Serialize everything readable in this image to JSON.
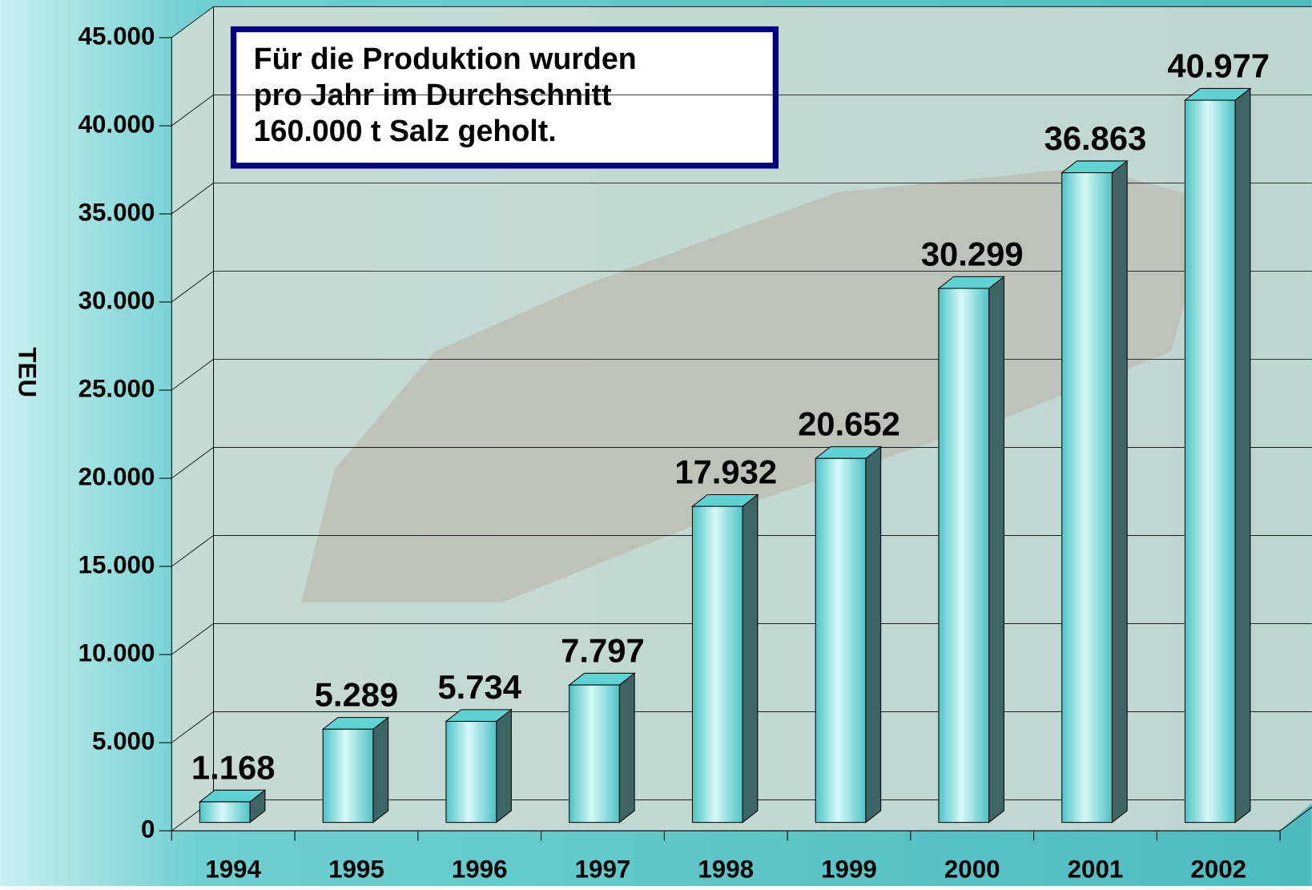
{
  "chart_data": {
    "type": "bar3d",
    "y_label": "TEU",
    "annotation": [
      "Für die Produktion wurden",
      "pro Jahr im Durchschnitt",
      "160.000 t Salz geholt."
    ],
    "categories": [
      "1994",
      "1995",
      "1996",
      "1997",
      "1998",
      "1999",
      "2000",
      "2001",
      "2002"
    ],
    "values": [
      1168,
      5289,
      5734,
      7797,
      17932,
      20652,
      30299,
      36863,
      40977
    ],
    "value_labels": [
      "1.168",
      "5.289",
      "5.734",
      "7.797",
      "17.932",
      "20.652",
      "30.299",
      "36.863",
      "40.977"
    ],
    "color": "#5fd3d3",
    "ylim": [
      0,
      45000
    ],
    "yticks": [
      {
        "value": 0,
        "label": "0"
      },
      {
        "value": 5000,
        "label": "5.000"
      },
      {
        "value": 10000,
        "label": "10.000"
      },
      {
        "value": 15000,
        "label": "15.000"
      },
      {
        "value": 20000,
        "label": "20.000"
      },
      {
        "value": 25000,
        "label": "25.000"
      },
      {
        "value": 30000,
        "label": "30.000"
      },
      {
        "value": 35000,
        "label": "35.000"
      },
      {
        "value": 40000,
        "label": "40.000"
      },
      {
        "value": 45000,
        "label": "45.000"
      }
    ],
    "grid": true
  }
}
